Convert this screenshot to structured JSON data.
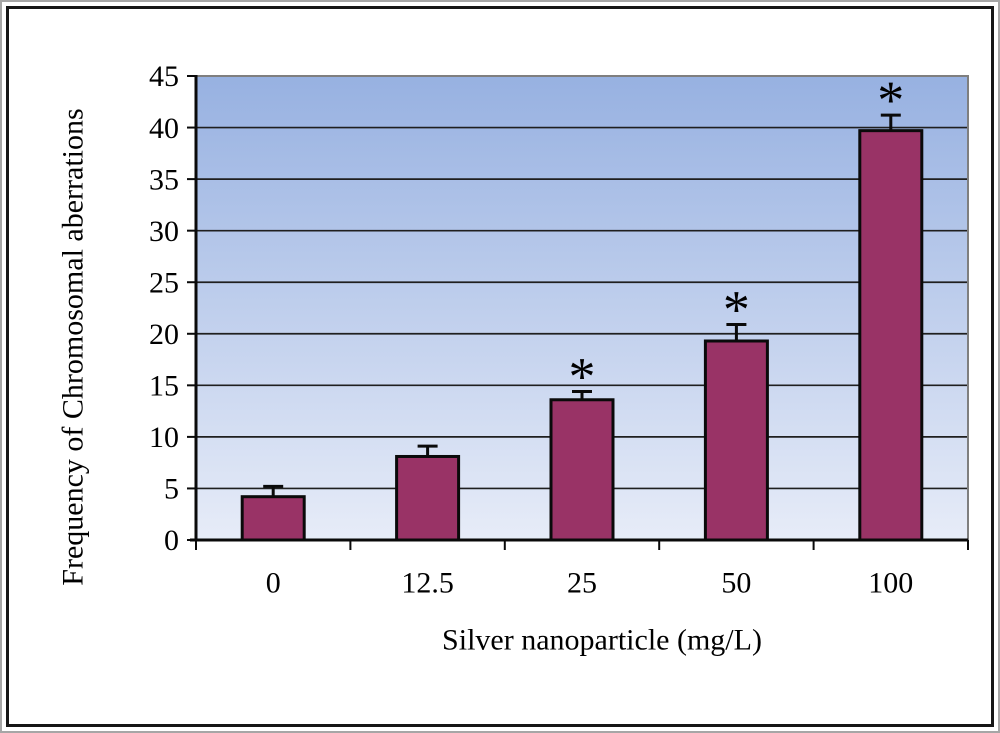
{
  "chart_data": {
    "type": "bar",
    "title": "",
    "categories": [
      "0",
      "12.5",
      "25",
      "50",
      "100"
    ],
    "series": [
      {
        "name": "Frequency of chromosomal aberrations",
        "values": [
          4.2,
          8.1,
          13.6,
          19.3,
          39.7
        ],
        "errors": [
          1.0,
          1.0,
          0.8,
          1.6,
          1.5
        ],
        "significance": [
          "",
          "",
          "*",
          "*",
          "*"
        ]
      }
    ],
    "xlabel": "Silver nanoparticle (mg/L)",
    "ylabel": "Frequency of Chromosomal aberrations",
    "ylim": [
      0,
      45
    ],
    "ytick_step": 5,
    "yticks": [
      0,
      5,
      10,
      15,
      20,
      25,
      30,
      35,
      40,
      45
    ],
    "grid": true,
    "legend": false,
    "sig_symbol": "*",
    "colors": {
      "bar_fill": "#993366",
      "bar_border": "#0a0a0a",
      "plot_bg_top": "#97b1e1",
      "plot_bg_bottom": "#e7ecf8",
      "gridline": "#1f1f1f",
      "axis": "#0a0a0a",
      "plot_border": "#7f7f7f",
      "text": "#000000",
      "frame_border": "#161616",
      "frame_outline": "#a6a6a6",
      "background": "#ffffff"
    }
  }
}
